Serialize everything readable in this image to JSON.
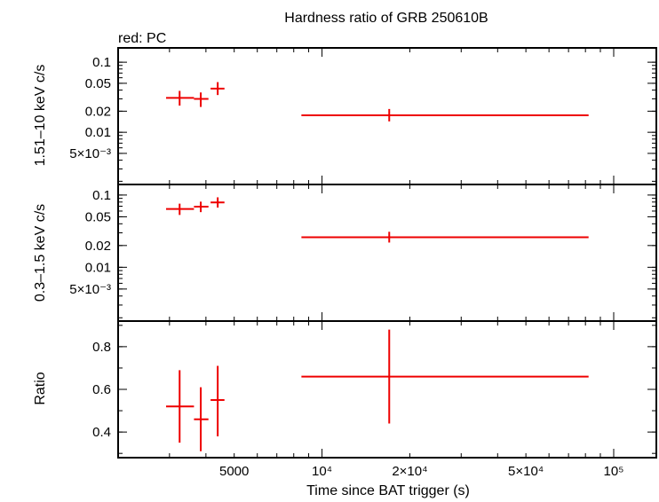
{
  "chart_data": {
    "type": "scatter",
    "title": "Hardness ratio of GRB 250610B",
    "subtitle": "red: PC",
    "xlabel": "Time since BAT trigger (s)",
    "xscale": "log",
    "xlim": [
      2000,
      140000
    ],
    "x_ticklabels": [
      {
        "value": 5000,
        "label": "5000"
      },
      {
        "value": 10000,
        "label": "10⁴"
      },
      {
        "value": 20000,
        "label": "2×10⁴"
      },
      {
        "value": 50000,
        "label": "5×10⁴"
      },
      {
        "value": 100000,
        "label": "10⁵"
      }
    ],
    "series_color": "#ee0000",
    "panels": [
      {
        "ylabel": "1.51–10 keV c/s",
        "yscale": "log",
        "ylim": [
          0.0018,
          0.16
        ],
        "y_ticklabels": [
          {
            "value": 0.1,
            "label": "0.1"
          },
          {
            "value": 0.05,
            "label": "0.05"
          },
          {
            "value": 0.02,
            "label": "0.02"
          },
          {
            "value": 0.01,
            "label": "0.01"
          },
          {
            "value": 0.005,
            "label": "5×10⁻³"
          }
        ],
        "points": [
          {
            "x": 3250,
            "xlo": 2920,
            "xhi": 3640,
            "y": 0.031,
            "ylo": 0.024,
            "yhi": 0.039
          },
          {
            "x": 3840,
            "xlo": 3640,
            "xhi": 4080,
            "y": 0.03,
            "ylo": 0.023,
            "yhi": 0.037
          },
          {
            "x": 4390,
            "xlo": 4150,
            "xhi": 4630,
            "y": 0.042,
            "ylo": 0.034,
            "yhi": 0.052
          },
          {
            "x": 17000,
            "xlo": 8500,
            "xhi": 82000,
            "y": 0.0175,
            "ylo": 0.0143,
            "yhi": 0.0215
          }
        ]
      },
      {
        "ylabel": "0.3–1.5 keV c/s",
        "yscale": "log",
        "ylim": [
          0.0018,
          0.14
        ],
        "y_ticklabels": [
          {
            "value": 0.1,
            "label": "0.1"
          },
          {
            "value": 0.05,
            "label": "0.05"
          },
          {
            "value": 0.02,
            "label": "0.02"
          },
          {
            "value": 0.01,
            "label": "0.01"
          },
          {
            "value": 0.005,
            "label": "5×10⁻³"
          }
        ],
        "points": [
          {
            "x": 3250,
            "xlo": 2920,
            "xhi": 3640,
            "y": 0.064,
            "ylo": 0.053,
            "yhi": 0.076
          },
          {
            "x": 3840,
            "xlo": 3640,
            "xhi": 4080,
            "y": 0.069,
            "ylo": 0.058,
            "yhi": 0.081
          },
          {
            "x": 4390,
            "xlo": 4150,
            "xhi": 4630,
            "y": 0.079,
            "ylo": 0.067,
            "yhi": 0.093
          },
          {
            "x": 17000,
            "xlo": 8500,
            "xhi": 82000,
            "y": 0.026,
            "ylo": 0.022,
            "yhi": 0.031
          }
        ]
      },
      {
        "ylabel": "Ratio",
        "yscale": "linear",
        "ylim": [
          0.28,
          0.92
        ],
        "y_ticklabels": [
          {
            "value": 0.8,
            "label": "0.8"
          },
          {
            "value": 0.6,
            "label": "0.6"
          },
          {
            "value": 0.4,
            "label": "0.4"
          }
        ],
        "points": [
          {
            "x": 3250,
            "xlo": 2920,
            "xhi": 3640,
            "y": 0.52,
            "ylo": 0.35,
            "yhi": 0.69
          },
          {
            "x": 3840,
            "xlo": 3640,
            "xhi": 4080,
            "y": 0.46,
            "ylo": 0.31,
            "yhi": 0.61
          },
          {
            "x": 4390,
            "xlo": 4150,
            "xhi": 4630,
            "y": 0.55,
            "ylo": 0.38,
            "yhi": 0.71
          },
          {
            "x": 17000,
            "xlo": 8500,
            "xhi": 82000,
            "y": 0.66,
            "ylo": 0.44,
            "yhi": 0.88
          }
        ]
      }
    ]
  }
}
